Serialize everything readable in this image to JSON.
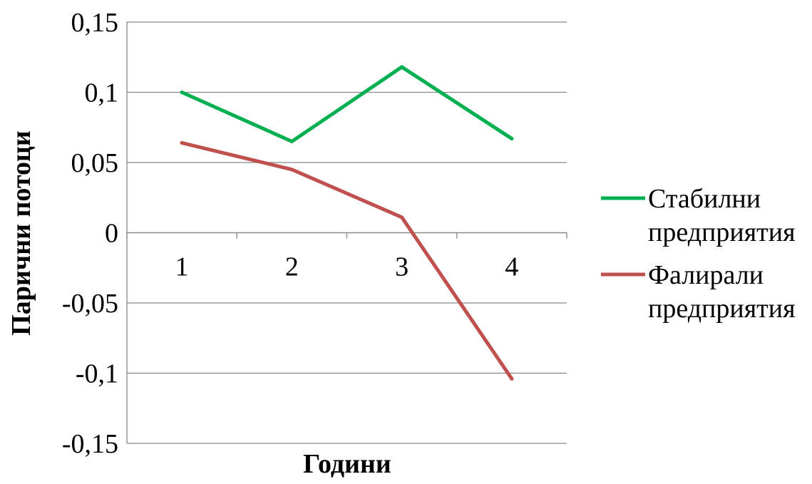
{
  "chart_data": {
    "type": "line",
    "title": "",
    "xlabel": "Години",
    "ylabel": "Парични  потоци",
    "categories": [
      "1",
      "2",
      "3",
      "4"
    ],
    "ylim": [
      -0.15,
      0.15
    ],
    "yticks": [
      0.15,
      0.1,
      0.05,
      0,
      -0.05,
      -0.1,
      -0.15
    ],
    "ytick_labels": [
      "0,15",
      "0,1",
      "0,05",
      "0",
      "-0,05",
      "-0,1",
      "-0,15"
    ],
    "grid": true,
    "legend_position": "right",
    "series": [
      {
        "name": "Стабилни предприятия",
        "legend_lines": [
          "Стабилни",
          "предприятия"
        ],
        "color": "#00b050",
        "values": [
          0.1,
          0.065,
          0.118,
          0.067
        ]
      },
      {
        "name": "Фалирали предприятия",
        "legend_lines": [
          "Фалирали",
          "предприятия"
        ],
        "color": "#c0504d",
        "values": [
          0.064,
          0.045,
          0.011,
          -0.104
        ]
      }
    ]
  }
}
